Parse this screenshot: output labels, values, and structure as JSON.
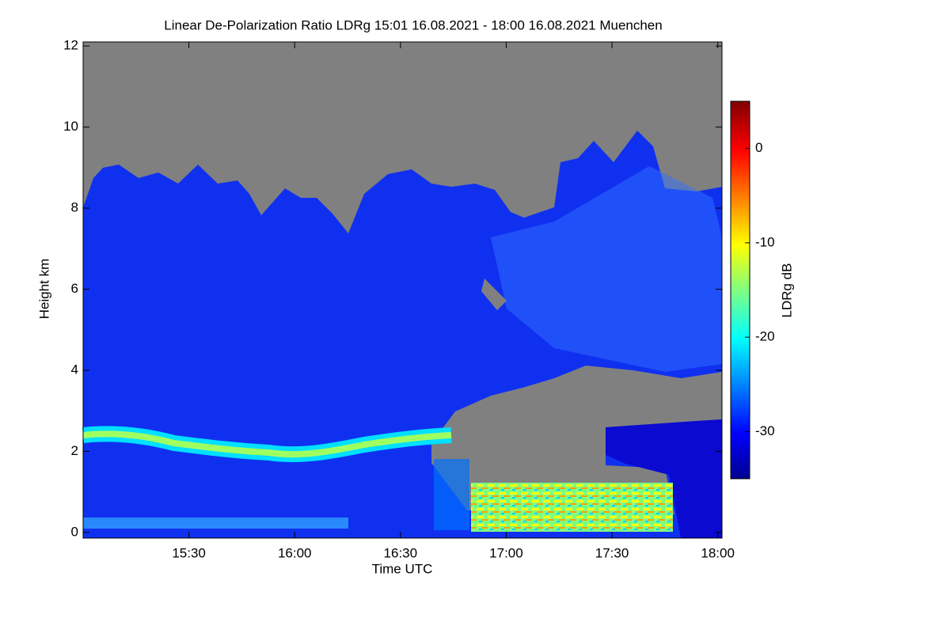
{
  "chart_data": {
    "type": "heatmap",
    "title": "Linear De-Polarization Ratio LDRg   15:01 16.08.2021 - 18:00 16.08.2021 Muenchen",
    "xlabel": "Time UTC",
    "ylabel": "Height km",
    "colorbar_label": "LDRg dB",
    "colormap": "jet",
    "xlim": [
      15.0,
      18.02
    ],
    "xticks": [
      {
        "value": 15.5,
        "label": "15:30"
      },
      {
        "value": 16.0,
        "label": "16:00"
      },
      {
        "value": 16.5,
        "label": "16:30"
      },
      {
        "value": 17.0,
        "label": "17:00"
      },
      {
        "value": 17.5,
        "label": "17:30"
      },
      {
        "value": 18.0,
        "label": "18:00"
      }
    ],
    "ylim": [
      -0.14,
      12.1
    ],
    "yticks": [
      0,
      2,
      4,
      6,
      8,
      10,
      12
    ],
    "clim": [
      -35,
      5
    ],
    "cticks": [
      0,
      -10,
      -20,
      -30
    ]
  }
}
